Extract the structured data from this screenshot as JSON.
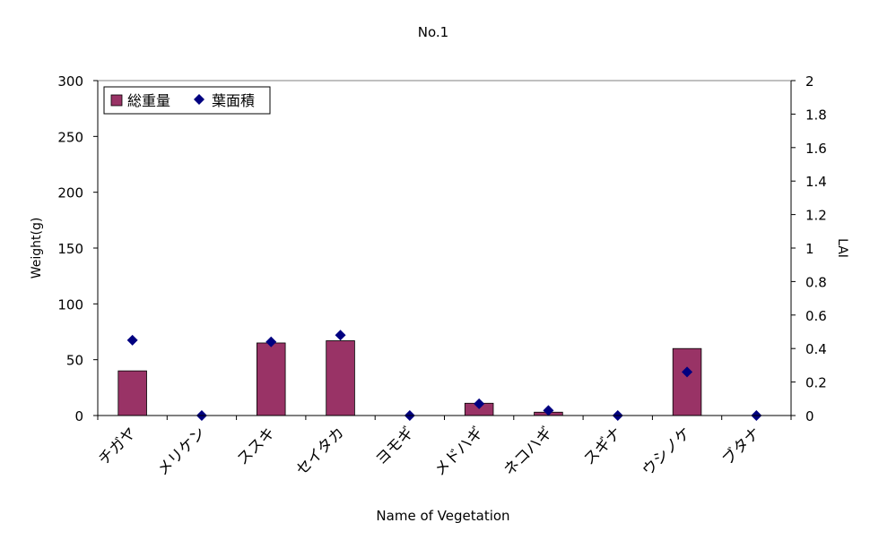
{
  "chart_data": {
    "type": "bar",
    "title": "No.1",
    "xlabel": "Name of Vegetation",
    "ylabel": "Weight(g)",
    "y2label": "LAI",
    "categories": [
      "チガヤ",
      "メリケン",
      "ススキ",
      "セイタカ",
      "ヨモギ",
      "メドハギ",
      "ネコハギ",
      "スギナ",
      "ウシノケ",
      "ブタナ"
    ],
    "ylim": [
      0,
      300
    ],
    "y_ticks": [
      "0",
      "50",
      "100",
      "150",
      "200",
      "250",
      "300"
    ],
    "y2lim": [
      0,
      2
    ],
    "y2_ticks": [
      "0",
      "0.2",
      "0.4",
      "0.6",
      "0.8",
      "1",
      "1.2",
      "1.4",
      "1.6",
      "1.8",
      "2"
    ],
    "grid": false,
    "legend_position": "top-left",
    "series": [
      {
        "name": "総重量",
        "type": "bar",
        "axis": "left",
        "color": "#993366",
        "values": [
          40,
          0,
          65,
          67,
          0,
          11,
          3,
          0,
          60,
          0
        ]
      },
      {
        "name": "葉面積",
        "type": "scatter",
        "axis": "right",
        "color": "#000080",
        "values": [
          0.45,
          0.0,
          0.44,
          0.48,
          0.0,
          0.07,
          0.03,
          0.0,
          0.26,
          0.0
        ]
      }
    ]
  }
}
